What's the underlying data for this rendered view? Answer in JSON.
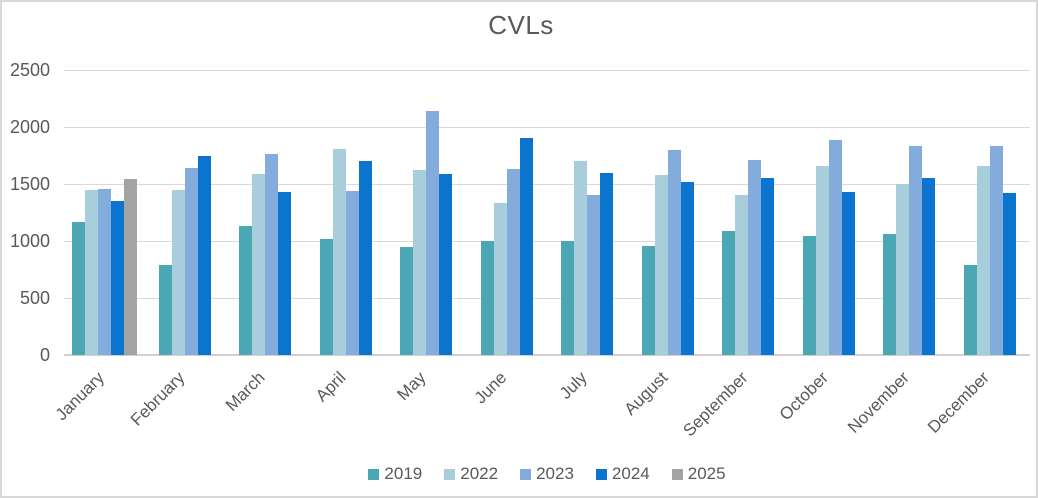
{
  "chart_data": {
    "type": "bar",
    "title": "CVLs",
    "xlabel": "",
    "ylabel": "",
    "categories": [
      "January",
      "February",
      "March",
      "April",
      "May",
      "June",
      "July",
      "August",
      "September",
      "October",
      "November",
      "December"
    ],
    "series": [
      {
        "name": "2019",
        "color": "#4BA7B3",
        "values": [
          1170,
          790,
          1130,
          1020,
          950,
          1000,
          1000,
          960,
          1090,
          1040,
          1060,
          790
        ]
      },
      {
        "name": "2022",
        "color": "#A9CEDB",
        "values": [
          1450,
          1450,
          1590,
          1810,
          1620,
          1330,
          1700,
          1580,
          1400,
          1660,
          1500,
          1660
        ]
      },
      {
        "name": "2023",
        "color": "#83ABDB",
        "values": [
          1460,
          1640,
          1760,
          1440,
          2140,
          1630,
          1400,
          1800,
          1710,
          1890,
          1830,
          1830
        ]
      },
      {
        "name": "2024",
        "color": "#0B74CE",
        "values": [
          1350,
          1750,
          1430,
          1700,
          1590,
          1900,
          1600,
          1520,
          1550,
          1430,
          1550,
          1420
        ]
      },
      {
        "name": "2025",
        "color": "#A3A3A3",
        "values": [
          1540,
          null,
          null,
          null,
          null,
          null,
          null,
          null,
          null,
          null,
          null,
          null
        ]
      }
    ],
    "ylim": [
      0,
      2500
    ],
    "yticks": [
      0,
      500,
      1000,
      1500,
      2000,
      2500
    ],
    "grid": true,
    "legend_position": "bottom",
    "legend_entries": [
      "2019",
      "2022",
      "2023",
      "2024",
      "2025"
    ]
  },
  "styles": {
    "text_color": "#595959",
    "gridline_color": "#D9D9D9",
    "zero_line_color": "#D0D0D0",
    "border_color": "#D8D8D8",
    "background": "#FFFFFF"
  }
}
